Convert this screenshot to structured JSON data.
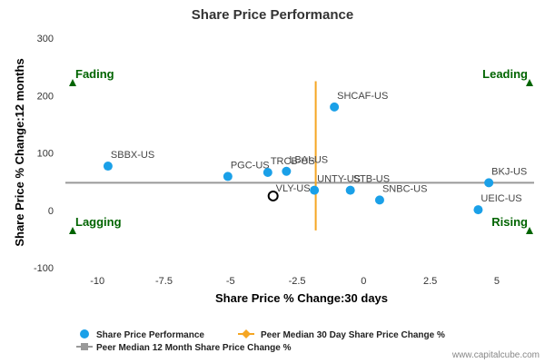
{
  "chart_data": {
    "type": "scatter",
    "title": "Share Price Performance",
    "xlabel": "Share Price % Change:30 days",
    "ylabel": "Share Price % Change:12 months",
    "xlim": [
      -11.2,
      6.4
    ],
    "ylim": [
      -100,
      300
    ],
    "x_ticks": [
      -10,
      -7.5,
      -5,
      -2.5,
      0,
      2.5,
      5
    ],
    "y_ticks": [
      -100,
      0,
      100,
      200,
      300
    ],
    "grid": false,
    "legend_position": "bottom-left",
    "series": [
      {
        "name": "Share Price Performance",
        "color": "#1aa0e8",
        "points": [
          {
            "label": "SBBX-US",
            "x": -9.6,
            "y": 77
          },
          {
            "label": "PGC-US",
            "x": -5.1,
            "y": 59
          },
          {
            "label": "TRCB-US",
            "x": -3.6,
            "y": 66
          },
          {
            "label": "LBAI-US",
            "x": -2.9,
            "y": 68
          },
          {
            "label": "SHCAF-US",
            "x": -1.1,
            "y": 180
          },
          {
            "label": "UNTY-US",
            "x": -1.85,
            "y": 35
          },
          {
            "label": "STB-US",
            "x": -0.5,
            "y": 35
          },
          {
            "label": "SNBC-US",
            "x": 0.6,
            "y": 18
          },
          {
            "label": "BKJ-US",
            "x": 4.7,
            "y": 48
          },
          {
            "label": "UEIC-US",
            "x": 4.3,
            "y": 1
          }
        ]
      },
      {
        "name": "Peer Median 30 Day Share Price Change %",
        "color": "#f5a623",
        "x": -1.8,
        "y_range": [
          -35,
          225
        ]
      },
      {
        "name": "Peer Median 12 Month Share Price Change %",
        "color": "#999999",
        "y": 48,
        "x_range": [
          -11.2,
          6.4
        ]
      }
    ],
    "highlight": {
      "label": "VLY-US",
      "x": -3.4,
      "y": 25
    },
    "quadrants": {
      "top_left": "Fading",
      "top_right": "Leading",
      "bottom_left": "Lagging",
      "bottom_right": "Rising",
      "color": "#006400"
    }
  },
  "footer": {
    "credit": "www.capitalcube.com"
  }
}
